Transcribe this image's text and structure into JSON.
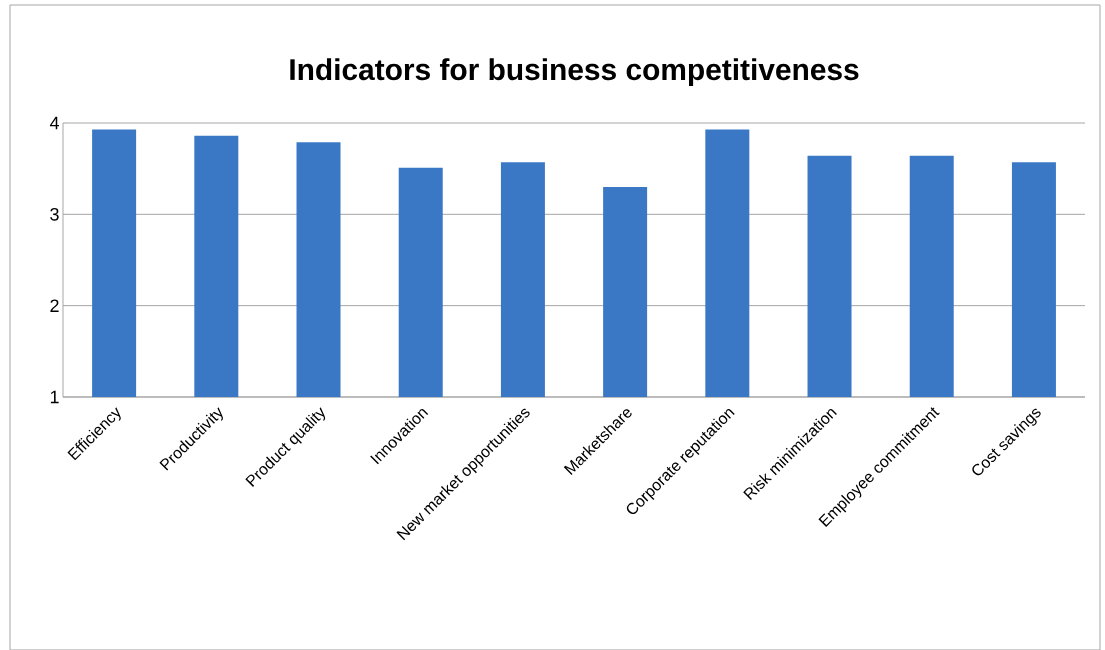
{
  "chart_data": {
    "type": "bar",
    "title": "Indicators for business competitiveness",
    "categories": [
      "Efficiency",
      "Productivity",
      "Product quality",
      "Innovation",
      "New market opportunities",
      "Marketshare",
      "Corporate reputation",
      "Risk minimization",
      "Employee commitment",
      "Cost savings"
    ],
    "values": [
      3.93,
      3.86,
      3.79,
      3.51,
      3.57,
      3.3,
      3.93,
      3.64,
      3.64,
      3.57
    ],
    "color": "#3a78c6",
    "ylim": [
      1,
      4
    ],
    "yticks": [
      1,
      2,
      3,
      4
    ],
    "grid": "y"
  }
}
